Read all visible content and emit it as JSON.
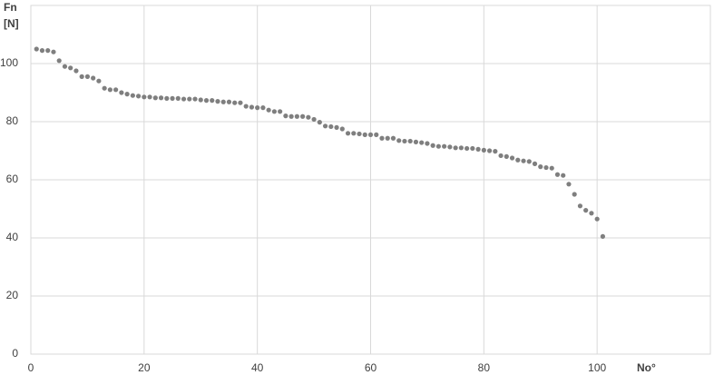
{
  "chart_data": {
    "type": "scatter",
    "ylabel": [
      "Fn",
      "[N]"
    ],
    "xlabel": "No°",
    "color": "#7f7f7f",
    "grid": true,
    "xlim": [
      0,
      120
    ],
    "xticks": [
      0,
      20,
      40,
      60,
      80,
      100
    ],
    "ylim": [
      0,
      120
    ],
    "yticks": [
      0,
      20,
      40,
      60,
      80,
      100
    ],
    "x": [
      1,
      2,
      3,
      4,
      5,
      6,
      7,
      8,
      9,
      10,
      11,
      12,
      13,
      14,
      15,
      16,
      17,
      18,
      19,
      20,
      21,
      22,
      23,
      24,
      25,
      26,
      27,
      28,
      29,
      30,
      31,
      32,
      33,
      34,
      35,
      36,
      37,
      38,
      39,
      40,
      41,
      42,
      43,
      44,
      45,
      46,
      47,
      48,
      49,
      50,
      51,
      52,
      53,
      54,
      55,
      56,
      57,
      58,
      59,
      60,
      61,
      62,
      63,
      64,
      65,
      66,
      67,
      68,
      69,
      70,
      71,
      72,
      73,
      74,
      75,
      76,
      77,
      78,
      79,
      80,
      81,
      82,
      83,
      84,
      85,
      86,
      87,
      88,
      89,
      90,
      91,
      92,
      93,
      94,
      95,
      96,
      97,
      98,
      99,
      100,
      101
    ],
    "values": [
      105,
      104.5,
      104.5,
      104,
      101,
      99,
      98.5,
      97.5,
      95.5,
      95.5,
      95,
      94,
      91.5,
      91,
      91,
      90,
      89.5,
      89,
      88.8,
      88.5,
      88.5,
      88.2,
      88.2,
      88,
      88,
      88,
      87.8,
      87.8,
      87.8,
      87.5,
      87.3,
      87.3,
      87,
      86.8,
      86.8,
      86.5,
      86.5,
      85.3,
      85,
      84.8,
      84.8,
      84,
      83.5,
      83.5,
      82,
      81.8,
      81.8,
      81.8,
      81.5,
      80.8,
      79.8,
      78.5,
      78.3,
      78,
      77.5,
      76,
      76,
      75.8,
      75.5,
      75.5,
      75.5,
      74.3,
      74.3,
      74.3,
      73.5,
      73.3,
      73.3,
      73,
      72.8,
      72.5,
      71.8,
      71.5,
      71.5,
      71.3,
      71,
      71,
      70.8,
      70.8,
      70.5,
      70.2,
      70,
      69.8,
      68.3,
      68,
      67.5,
      66.8,
      66.5,
      66.3,
      65.5,
      64.5,
      64.2,
      64,
      61.8,
      61.5,
      58.5,
      55,
      51,
      49.5,
      48.5,
      46.5,
      40.5
    ]
  }
}
